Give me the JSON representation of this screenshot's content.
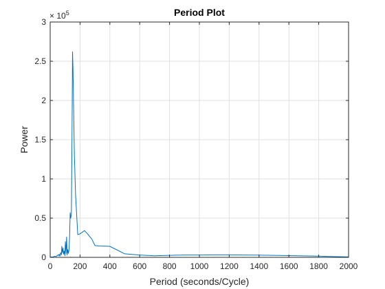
{
  "chart_data": {
    "type": "line",
    "title": "Period Plot",
    "xlabel": "Period (seconds/Cycle)",
    "ylabel": "Power",
    "xlim": [
      0,
      2000
    ],
    "ylim": [
      0,
      300000
    ],
    "grid": true,
    "x_ticks": [
      0,
      200,
      400,
      600,
      800,
      1000,
      1200,
      1400,
      1600,
      1800,
      2000
    ],
    "x_tick_labels": [
      "0",
      "200",
      "400",
      "600",
      "800",
      "1000",
      "1200",
      "1400",
      "1600",
      "1800",
      "2000"
    ],
    "y_ticks": [
      0,
      50000,
      100000,
      150000,
      200000,
      250000,
      300000
    ],
    "y_tick_labels": [
      "0",
      "0.5",
      "1",
      "1.5",
      "2",
      "2.5",
      "3"
    ],
    "y_exponent": {
      "base": "× 10",
      "power": "5"
    },
    "line_color": "#0072bd",
    "series": [
      {
        "x": [
          0,
          20,
          30,
          40,
          50,
          55,
          60,
          65,
          70,
          75,
          78,
          82,
          86,
          90,
          94,
          98,
          102,
          106,
          110,
          114,
          118,
          122,
          126,
          130,
          134,
          138,
          142,
          146,
          150,
          153,
          157,
          162,
          170,
          185,
          200,
          230,
          250,
          280,
          300,
          330,
          400,
          500,
          600,
          700,
          800,
          900,
          1000,
          1100,
          1200,
          1300,
          1400,
          1500,
          1600,
          1700,
          1800,
          1900,
          2000
        ],
        "y": [
          200,
          500,
          1500,
          1000,
          3000,
          2000,
          4000,
          1500,
          6000,
          3000,
          14000,
          6000,
          12000,
          4000,
          8000,
          2000,
          20000,
          5000,
          26000,
          3000,
          10000,
          5000,
          9000,
          25000,
          57000,
          50000,
          55000,
          150000,
          262000,
          240000,
          190000,
          130000,
          80000,
          29000,
          30000,
          34000,
          30000,
          23000,
          15000,
          14500,
          14000,
          4500,
          3000,
          2000,
          2500,
          3000,
          3000,
          3200,
          3200,
          3000,
          2800,
          2500,
          2200,
          1800,
          1500,
          1000,
          500
        ]
      }
    ]
  }
}
